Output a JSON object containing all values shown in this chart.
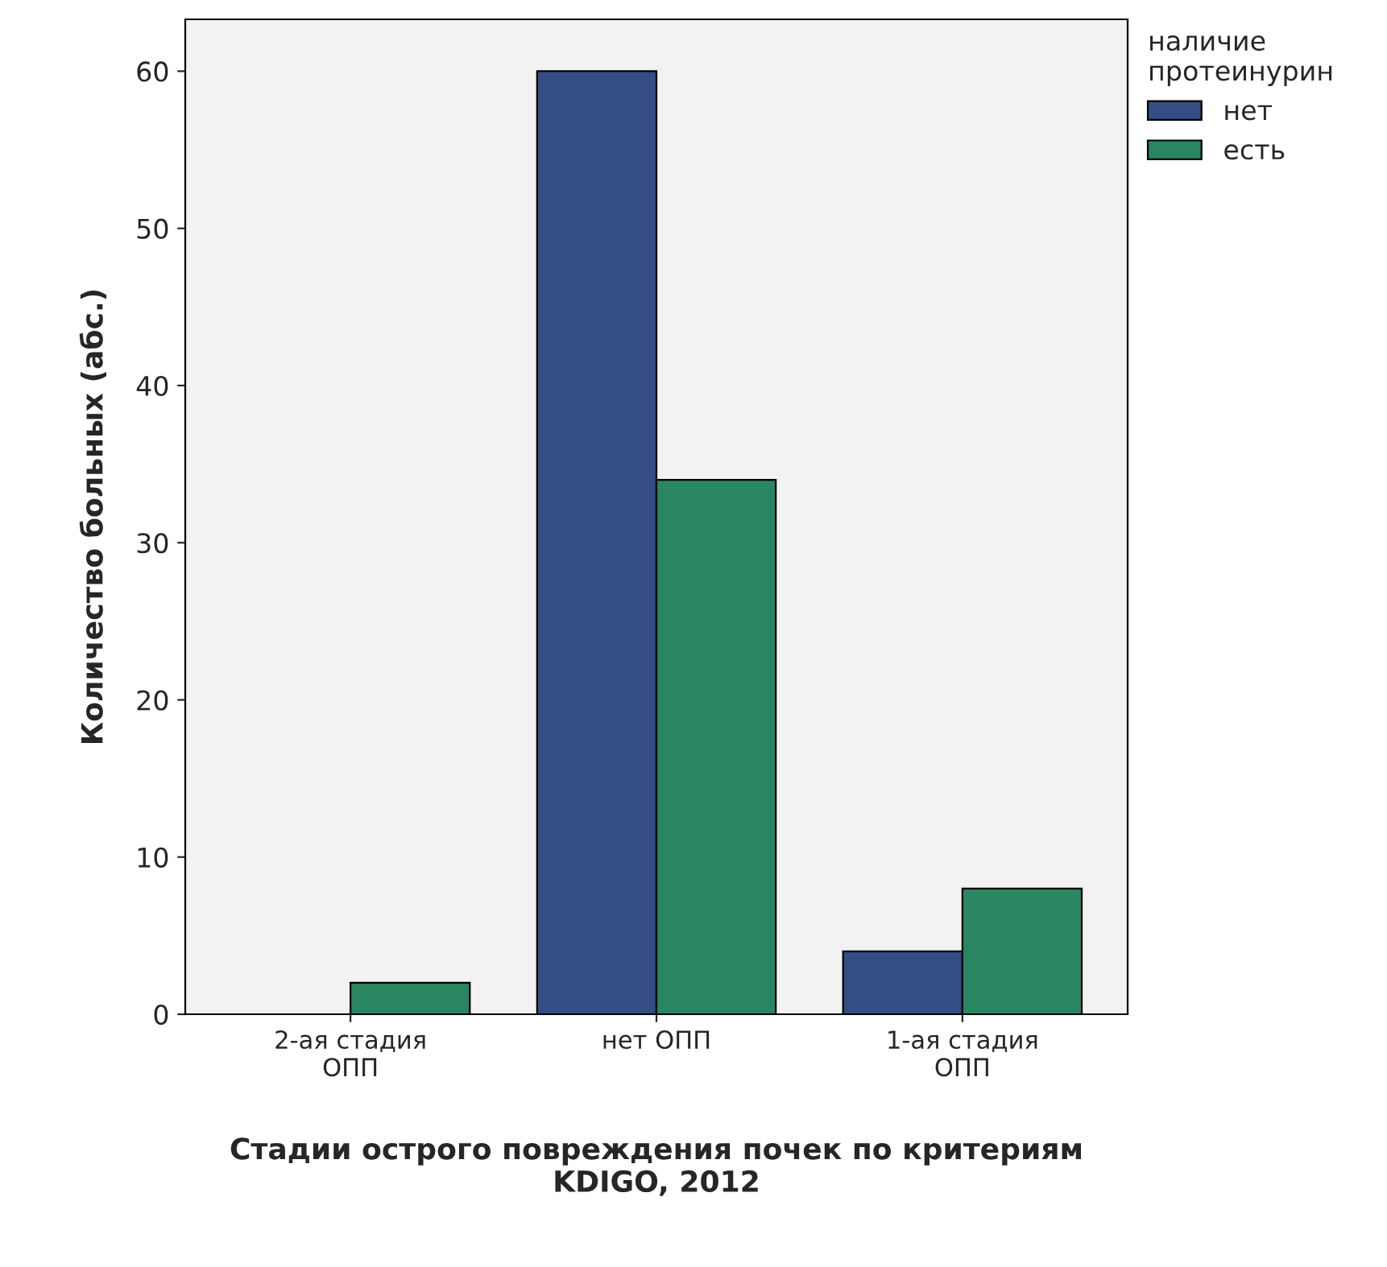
{
  "chart_data": {
    "type": "bar",
    "categories": [
      "2-ая стадия\nОПП",
      "нет ОПП",
      "1-ая стадия\nОПП"
    ],
    "series": [
      {
        "name": "нет",
        "color": "#344d85",
        "values": [
          0,
          60,
          4
        ]
      },
      {
        "name": "есть",
        "color": "#2a8561",
        "values": [
          2,
          34,
          8
        ]
      }
    ],
    "xlabel": "Стадии острого повреждения почек по критериям\nKDIGO, 2012",
    "ylabel": "Количество больных (абс.)",
    "legend_title": "наличие\nпротеинурин",
    "legend": "top right",
    "ylim": [
      0,
      63.3
    ],
    "yticks": [
      0,
      10,
      20,
      30,
      40,
      50,
      60
    ],
    "grid": false
  }
}
